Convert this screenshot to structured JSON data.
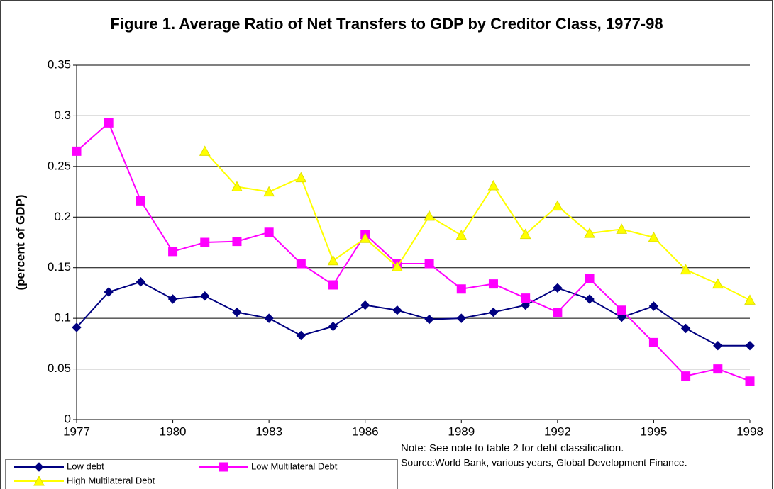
{
  "chart_data": {
    "type": "line",
    "title": "Figure 1. Average Ratio of Net Transfers to GDP by Creditor Class, 1977-98",
    "y_label": "(percent of GDP)",
    "x": [
      1977,
      1978,
      1979,
      1980,
      1981,
      1982,
      1983,
      1984,
      1985,
      1986,
      1987,
      1988,
      1989,
      1990,
      1991,
      1992,
      1993,
      1994,
      1995,
      1996,
      1997,
      1998
    ],
    "xlim": [
      1977,
      1998
    ],
    "xticks": [
      1977,
      1980,
      1983,
      1986,
      1989,
      1992,
      1995,
      1998
    ],
    "ylim": [
      0,
      0.35
    ],
    "yticks": [
      0,
      0.05,
      0.1,
      0.15,
      0.2,
      0.25,
      0.3,
      0.35
    ],
    "grid": true,
    "legend": "bottom-left",
    "series": [
      {
        "name": "Low debt",
        "color": "#000080",
        "marker": "diamond",
        "values": [
          0.091,
          0.126,
          0.136,
          0.119,
          0.122,
          0.106,
          0.1,
          0.083,
          0.092,
          0.113,
          0.108,
          0.099,
          0.1,
          0.106,
          0.113,
          0.13,
          0.119,
          0.101,
          0.112,
          0.09,
          0.073,
          0.073
        ]
      },
      {
        "name": "Low Multilateral Debt",
        "color": "#ff00ff",
        "marker": "square",
        "values": [
          0.265,
          0.293,
          0.216,
          0.166,
          0.175,
          0.176,
          0.185,
          0.154,
          0.133,
          0.183,
          0.154,
          0.154,
          0.129,
          0.134,
          0.12,
          0.106,
          0.139,
          0.108,
          0.076,
          0.043,
          0.05,
          0.038
        ]
      },
      {
        "name": "High Multilateral Debt",
        "color": "#ffff00",
        "marker": "triangle",
        "values": [
          null,
          null,
          null,
          null,
          0.265,
          0.23,
          0.225,
          0.239,
          0.157,
          0.179,
          0.151,
          0.201,
          0.182,
          0.231,
          0.183,
          0.211,
          0.184,
          0.188,
          0.18,
          0.148,
          0.134,
          0.118
        ]
      }
    ],
    "notes": [
      "Note: See note to table 2 for debt classification.",
      "Source:World Bank, various years, Global Development Finance."
    ]
  }
}
